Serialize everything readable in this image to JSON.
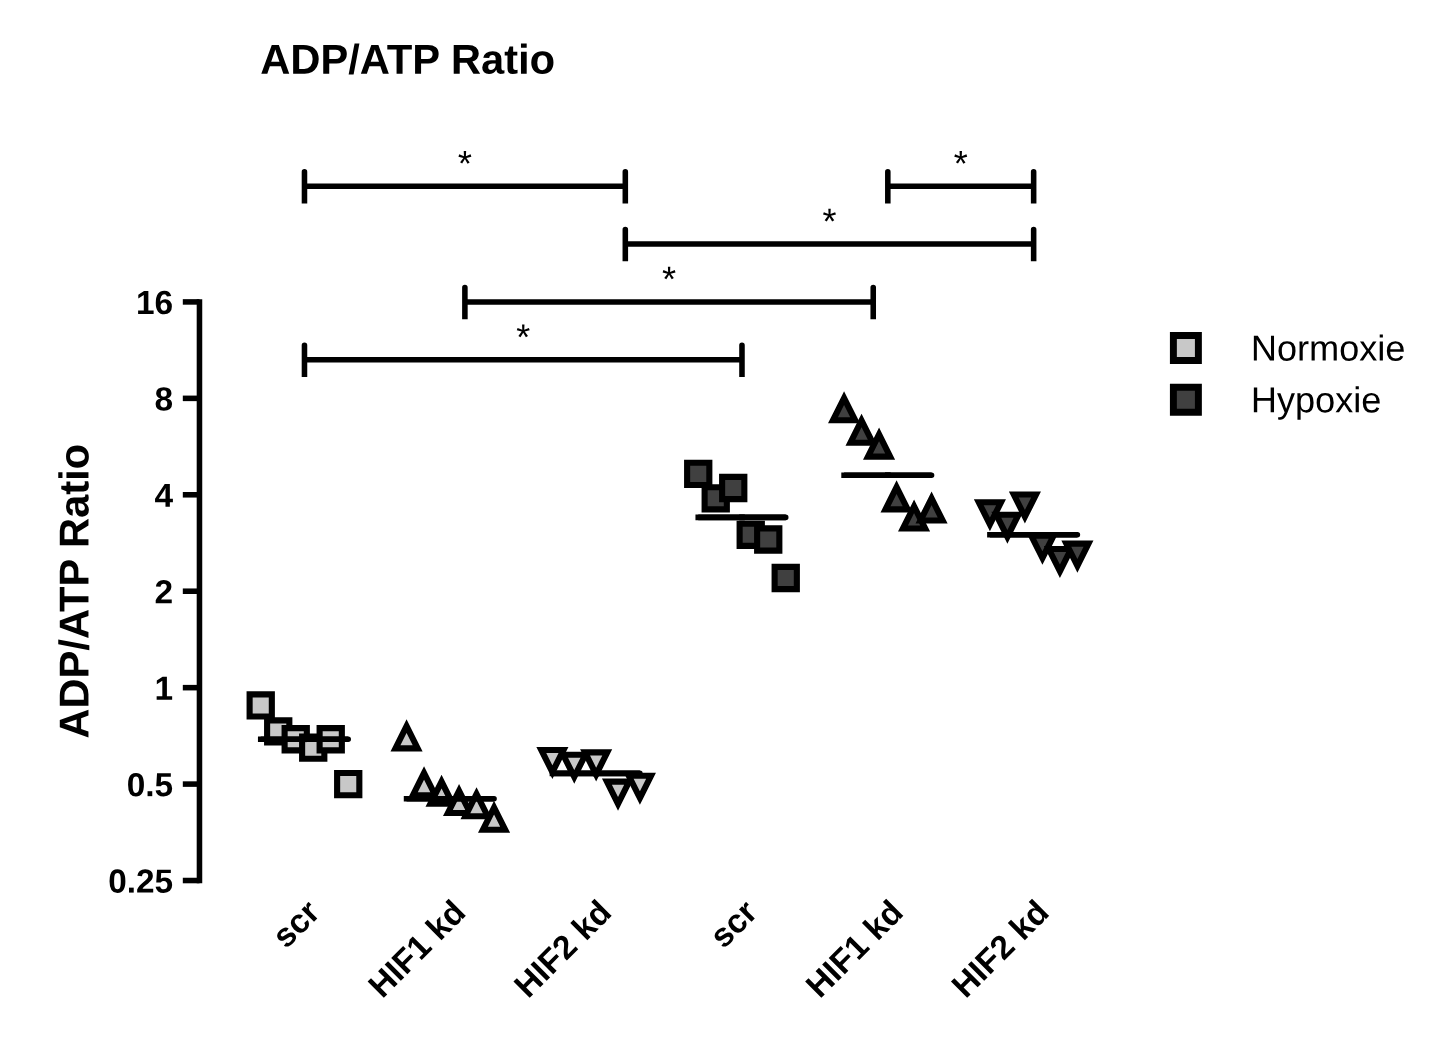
{
  "chart_data": {
    "type": "scatter",
    "title": "ADP/ATP Ratio",
    "ylabel": "ADP/ATP Ratio",
    "categories": [
      "scr",
      "HIF1 kd",
      "HIF2 kd",
      "scr",
      "HIF1 kd",
      "HIF2 kd"
    ],
    "log": "y",
    "ylim": [
      0.25,
      16
    ],
    "yticks": [
      {
        "value": 0.25,
        "label": "0.25"
      },
      {
        "value": 0.5,
        "label": "0.5"
      },
      1,
      2,
      4,
      8,
      16
    ],
    "grid": false,
    "legend": "top right",
    "series": [
      {
        "name": "Normoxie",
        "color": "#c8c8c8",
        "marker": [
          "square",
          "triangle",
          "triangle_down",
          null,
          null,
          null
        ],
        "values": [
          0.88,
          0.7,
          0.59,
          null,
          null,
          null
        ]
      },
      {
        "color": "#c8c8c8",
        "marker": [
          "square",
          "triangle",
          "triangle_down",
          null,
          null,
          null
        ],
        "values": [
          0.73,
          0.5,
          0.57,
          null,
          null,
          null
        ]
      },
      {
        "color": "#c8c8c8",
        "marker": [
          "square",
          "triangle",
          "triangle_down",
          null,
          null,
          null
        ],
        "values": [
          0.69,
          0.47,
          0.58,
          null,
          null,
          null
        ]
      },
      {
        "color": "#c8c8c8",
        "marker": [
          "square",
          "triangle",
          "triangle_down",
          null,
          null,
          null
        ],
        "values": [
          0.65,
          0.44,
          0.47,
          null,
          null,
          null
        ]
      },
      {
        "color": "#c8c8c8",
        "marker": [
          "square",
          "triangle",
          "triangle_down",
          null,
          null,
          null
        ],
        "values": [
          0.69,
          0.43,
          0.49,
          null,
          null,
          null
        ]
      },
      {
        "color": "#c8c8c8",
        "marker": [
          "square",
          "triangle",
          "triangle_down",
          null,
          null,
          null
        ],
        "values": [
          0.5,
          0.39,
          null,
          null,
          null,
          null
        ]
      },
      {
        "name": "Hypoxie",
        "color": "#404040",
        "marker": [
          null,
          null,
          null,
          "square",
          "triangle",
          "triangle_down"
        ],
        "values": [
          null,
          null,
          null,
          4.65,
          7.4,
          3.5
        ]
      },
      {
        "color": "#404040",
        "marker": [
          null,
          null,
          null,
          "square",
          "triangle",
          "triangle_down"
        ],
        "values": [
          null,
          null,
          null,
          3.9,
          6.3,
          3.2
        ]
      },
      {
        "color": "#404040",
        "marker": [
          null,
          null,
          null,
          "square",
          "triangle",
          "triangle_down"
        ],
        "values": [
          null,
          null,
          null,
          4.2,
          5.7,
          3.7
        ]
      },
      {
        "color": "#404040",
        "marker": [
          null,
          null,
          null,
          "square",
          "triangle",
          "triangle_down"
        ],
        "values": [
          null,
          null,
          null,
          3.0,
          3.9,
          2.75
        ]
      },
      {
        "color": "#404040",
        "marker": [
          null,
          null,
          null,
          "square",
          "triangle",
          "triangle_down"
        ],
        "values": [
          null,
          null,
          null,
          2.9,
          3.4,
          2.5
        ]
      },
      {
        "color": "#404040",
        "marker": [
          null,
          null,
          null,
          "square",
          "triangle",
          "triangle_down"
        ],
        "values": [
          null,
          null,
          null,
          2.2,
          3.6,
          2.6
        ]
      },
      {
        "type": "box",
        "color": "#000000",
        "boxes": [
          {
            "low": 0.69,
            "q1": 0.69,
            "median": 0.69,
            "q3": 0.69,
            "high": 0.69
          },
          {
            "low": 0.45,
            "q1": 0.45,
            "median": 0.45,
            "q3": 0.45,
            "high": 0.45
          },
          {
            "low": 0.54,
            "q1": 0.54,
            "median": 0.54,
            "q3": 0.54,
            "high": 0.54
          },
          {
            "low": 3.4,
            "q1": 3.4,
            "median": 3.4,
            "q3": 3.4,
            "high": 3.4
          },
          {
            "low": 4.6,
            "q1": 4.6,
            "median": 4.6,
            "q3": 4.6,
            "high": 4.6
          },
          {
            "low": 3.0,
            "q1": 3.0,
            "median": 3.0,
            "q3": 3.0,
            "high": 3.0
          }
        ]
      }
    ],
    "annotations": [
      "*",
      "*",
      "*",
      "*",
      "*"
    ]
  }
}
